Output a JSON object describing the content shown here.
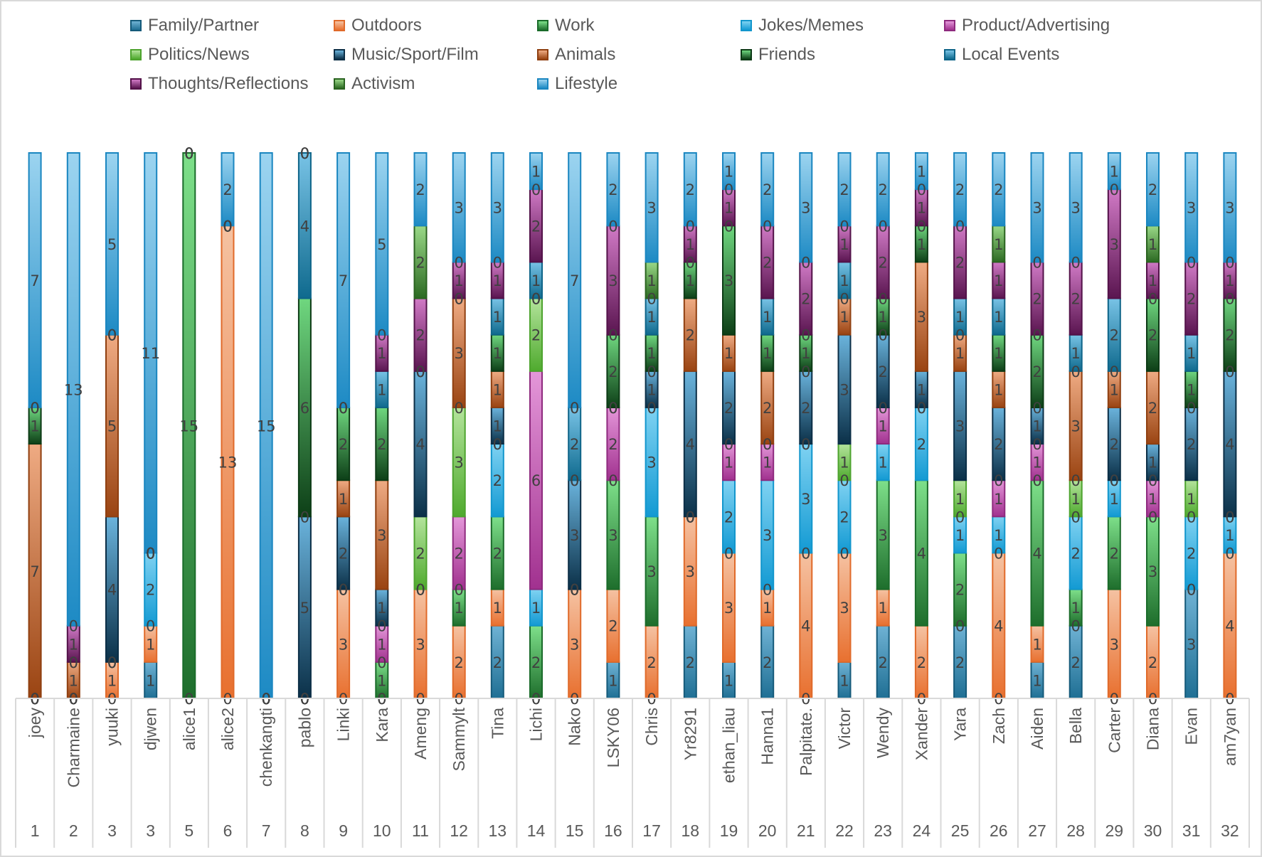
{
  "chart_data": {
    "type": "bar",
    "stacked": true,
    "orientation": "vertical",
    "title": "",
    "xlabel": "",
    "ylabel": "",
    "ylim": [
      0,
      15
    ],
    "grid": false,
    "legend_position": "top",
    "data_labels": true,
    "categories": [
      {
        "name": "joey",
        "num": "1"
      },
      {
        "name": "Charmaine",
        "num": "2"
      },
      {
        "name": "yuuki",
        "num": "3"
      },
      {
        "name": "djwen",
        "num": "3"
      },
      {
        "name": "alice1",
        "num": "5"
      },
      {
        "name": "alice2",
        "num": "6"
      },
      {
        "name": "chenkangti",
        "num": "7"
      },
      {
        "name": "pablo",
        "num": "8"
      },
      {
        "name": "Linki",
        "num": "9"
      },
      {
        "name": "Kara",
        "num": "10"
      },
      {
        "name": "Ameng",
        "num": "11"
      },
      {
        "name": "Sammylt",
        "num": "12"
      },
      {
        "name": "Tina",
        "num": "13"
      },
      {
        "name": "Lichi",
        "num": "14"
      },
      {
        "name": "Nako",
        "num": "15"
      },
      {
        "name": "LSKY06",
        "num": "16"
      },
      {
        "name": "Chris",
        "num": "17"
      },
      {
        "name": "Yr8291",
        "num": "18"
      },
      {
        "name": "ethan_liau",
        "num": "19"
      },
      {
        "name": "Hanna1",
        "num": "20"
      },
      {
        "name": "Palpitate.",
        "num": "21"
      },
      {
        "name": "Victor",
        "num": "22"
      },
      {
        "name": "Wendy",
        "num": "23"
      },
      {
        "name": "Xander",
        "num": "24"
      },
      {
        "name": "Yara",
        "num": "25"
      },
      {
        "name": "Zach",
        "num": "26"
      },
      {
        "name": "Aiden",
        "num": "27"
      },
      {
        "name": "Bella",
        "num": "28"
      },
      {
        "name": "Carter",
        "num": "29"
      },
      {
        "name": "Diana",
        "num": "30"
      },
      {
        "name": "Evan",
        "num": "31"
      },
      {
        "name": "am7yan",
        "num": "32"
      }
    ],
    "series": [
      {
        "name": "Family/Partner",
        "color": "#1f6f94",
        "light": "#6fb2d4",
        "border": "#155a7a",
        "values": [
          0,
          0,
          0,
          1,
          0,
          0,
          0,
          0,
          0,
          0,
          0,
          0,
          2,
          0,
          0,
          1,
          0,
          2,
          1,
          2,
          0,
          1,
          2,
          0,
          2,
          0,
          1,
          2,
          0,
          0,
          3,
          0
        ]
      },
      {
        "name": "Outdoors",
        "color": "#e8702f",
        "light": "#f5c2a2",
        "border": "#e06a2a",
        "values": [
          0,
          0,
          1,
          1,
          0,
          13,
          0,
          0,
          3,
          0,
          3,
          2,
          1,
          0,
          3,
          2,
          2,
          3,
          3,
          1,
          4,
          3,
          1,
          2,
          0,
          4,
          1,
          0,
          3,
          2,
          0,
          4
        ]
      },
      {
        "name": "Work",
        "color": "#1e6e2c",
        "light": "#7ee08a",
        "border": "#1a6b2a",
        "values": [
          0,
          0,
          0,
          0,
          15,
          0,
          0,
          0,
          0,
          1,
          0,
          1,
          2,
          2,
          0,
          3,
          3,
          0,
          0,
          0,
          0,
          0,
          3,
          4,
          2,
          0,
          4,
          1,
          2,
          3,
          0,
          0
        ]
      },
      {
        "name": "Jokes/Memes",
        "color": "#139ad3",
        "light": "#7fd2f2",
        "border": "#1296cc",
        "values": [
          0,
          0,
          0,
          2,
          0,
          0,
          0,
          0,
          0,
          0,
          0,
          0,
          2,
          1,
          0,
          0,
          3,
          0,
          2,
          3,
          3,
          2,
          1,
          2,
          1,
          1,
          0,
          2,
          1,
          0,
          2,
          1
        ]
      },
      {
        "name": "Product/Advertising",
        "color": "#a1318f",
        "light": "#e497d9",
        "border": "#8e2a7e",
        "values": [
          0,
          0,
          0,
          0,
          0,
          0,
          0,
          0,
          0,
          1,
          0,
          2,
          0,
          6,
          0,
          2,
          0,
          0,
          1,
          1,
          0,
          0,
          1,
          0,
          0,
          1,
          1,
          0,
          0,
          1,
          0,
          0
        ]
      },
      {
        "name": "Politics/News",
        "color": "#4faa2e",
        "light": "#b4e49c",
        "border": "#4da32e",
        "values": [
          0,
          0,
          0,
          0,
          0,
          0,
          0,
          0,
          0,
          0,
          2,
          3,
          0,
          2,
          0,
          0,
          0,
          0,
          0,
          0,
          0,
          1,
          0,
          0,
          1,
          0,
          0,
          1,
          0,
          0,
          1,
          0
        ]
      },
      {
        "name": "Music/Sport/Film",
        "color": "#0b3048",
        "light": "#6ab3dc",
        "border": "#0b2e46",
        "values": [
          0,
          0,
          4,
          0,
          0,
          0,
          0,
          5,
          2,
          1,
          4,
          0,
          1,
          0,
          3,
          0,
          1,
          4,
          2,
          0,
          2,
          3,
          2,
          1,
          3,
          2,
          1,
          0,
          2,
          1,
          2,
          4
        ]
      },
      {
        "name": "Animals",
        "color": "#9a4412",
        "light": "#efab83",
        "border": "#8f3f10",
        "values": [
          7,
          1,
          5,
          0,
          0,
          0,
          0,
          0,
          1,
          3,
          0,
          3,
          1,
          0,
          0,
          0,
          0,
          2,
          1,
          2,
          0,
          1,
          0,
          3,
          1,
          1,
          0,
          3,
          1,
          2,
          0,
          0
        ]
      },
      {
        "name": "Friends",
        "color": "#0d3f17",
        "light": "#6fd77f",
        "border": "#0c3a15",
        "values": [
          1,
          0,
          0,
          0,
          0,
          0,
          0,
          6,
          2,
          2,
          0,
          0,
          1,
          0,
          0,
          2,
          1,
          1,
          3,
          1,
          1,
          0,
          1,
          1,
          0,
          1,
          2,
          0,
          0,
          2,
          1,
          2
        ]
      },
      {
        "name": "Local Events",
        "color": "#0f6a8e",
        "light": "#78c3e6",
        "border": "#0e6488",
        "values": [
          0,
          0,
          0,
          0,
          0,
          0,
          0,
          4,
          0,
          1,
          0,
          0,
          1,
          1,
          2,
          0,
          1,
          0,
          0,
          1,
          0,
          1,
          0,
          0,
          1,
          1,
          0,
          1,
          2,
          0,
          1,
          0
        ]
      },
      {
        "name": "Thoughts/Reflections",
        "color": "#5a1550",
        "light": "#d17ac6",
        "border": "#531249",
        "values": [
          0,
          1,
          0,
          0,
          0,
          0,
          0,
          0,
          0,
          1,
          2,
          1,
          1,
          2,
          0,
          3,
          0,
          1,
          1,
          2,
          2,
          1,
          2,
          1,
          2,
          1,
          2,
          2,
          3,
          1,
          2,
          1
        ]
      },
      {
        "name": "Activism",
        "color": "#2c6a22",
        "light": "#9ad987",
        "border": "#2a6320",
        "values": [
          0,
          0,
          0,
          0,
          0,
          0,
          0,
          0,
          0,
          0,
          2,
          0,
          0,
          0,
          0,
          0,
          1,
          0,
          0,
          0,
          0,
          0,
          0,
          0,
          0,
          1,
          0,
          0,
          0,
          1,
          0,
          0
        ]
      },
      {
        "name": "Lifestyle",
        "color": "#1d8ac4",
        "light": "#9cd4f0",
        "border": "#1a86c0",
        "values": [
          7,
          13,
          5,
          11,
          0,
          2,
          15,
          0,
          7,
          5,
          2,
          3,
          3,
          1,
          7,
          2,
          3,
          2,
          1,
          2,
          3,
          2,
          2,
          1,
          2,
          2,
          3,
          3,
          1,
          2,
          3,
          3
        ]
      }
    ]
  }
}
